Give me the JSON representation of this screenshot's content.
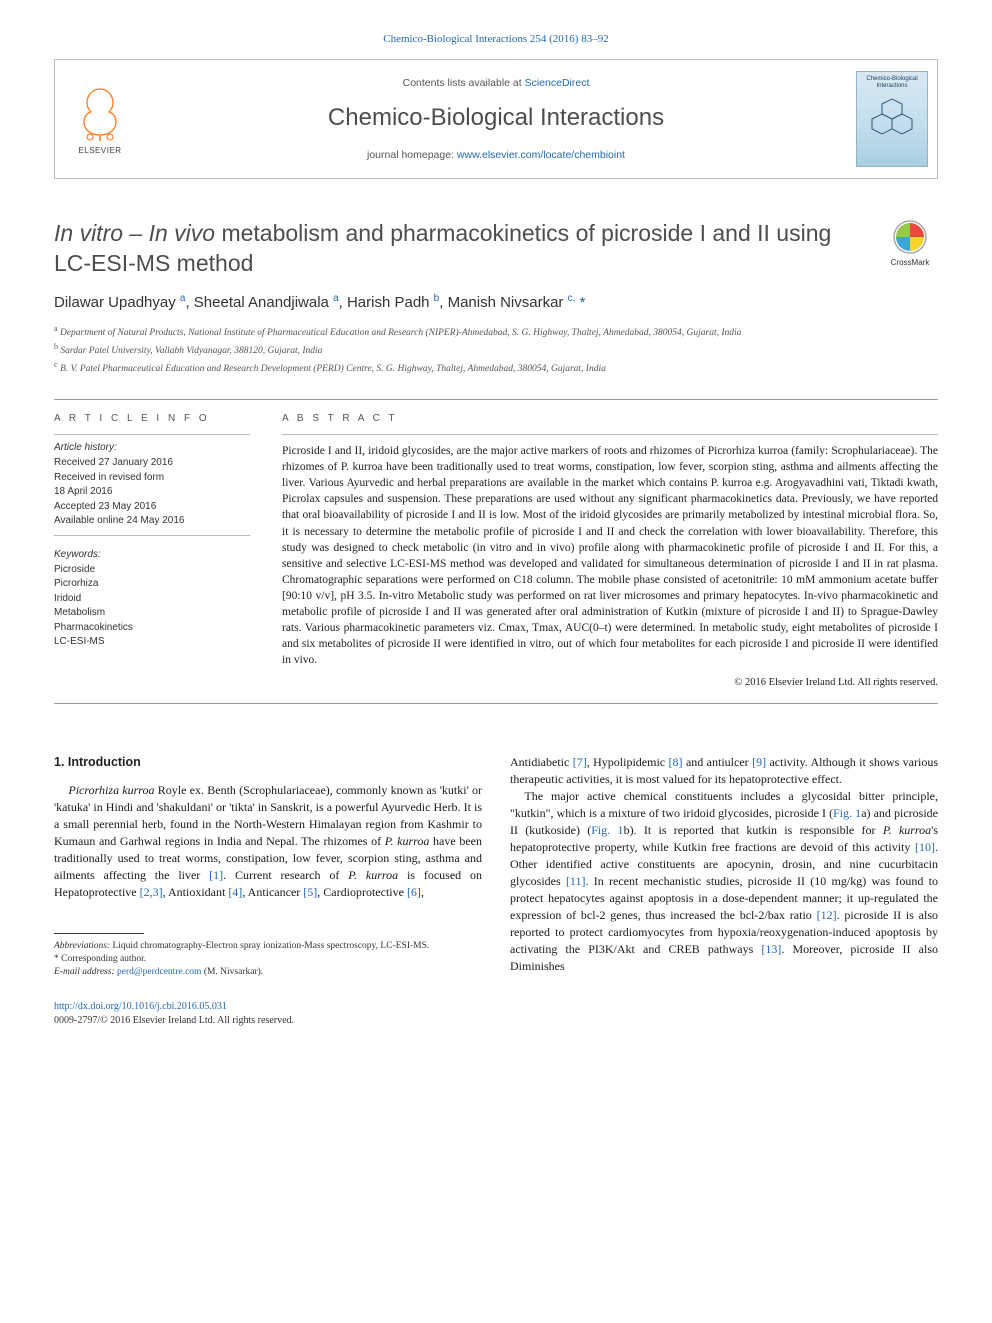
{
  "citation": "Chemico-Biological Interactions 254 (2016) 83–92",
  "header": {
    "contents_prefix": "Contents lists available at ",
    "contents_link": "ScienceDirect",
    "journal": "Chemico-Biological Interactions",
    "homepage_prefix": "journal homepage: ",
    "homepage_link": "www.elsevier.com/locate/chembioint",
    "publisher_label": "ELSEVIER",
    "publisher_color": "#ff7a1a",
    "cover_title": "Chemico-Biological Interactions",
    "cover_bg_top": "#d8e9f3",
    "cover_bg_bottom": "#a9cfe3"
  },
  "crossmark_label": "CrossMark",
  "title_html": "<i>In vitro – In vivo</i> metabolism and pharmacokinetics of picroside I and II using LC-ESI-MS method",
  "authors_html": "Dilawar Upadhyay <sup>a</sup>, Sheetal Anandjiwala <sup>a</sup>, Harish Padh <sup>b</sup>, Manish Nivsarkar <sup>c,</sup> <span class='corr'>*</span>",
  "affiliations": [
    "a Department of Natural Products, National Institute of Pharmaceutical Education and Research (NIPER)-Ahmedabad, S. G. Highway, Thaltej, Ahmedabad, 380054, Gujarat, India",
    "b Sardar Patel University, Vallabh Vidyanagar, 388120, Gujarat, India",
    "c B. V. Patel Pharmaceutical Education and Research Development (PERD) Centre, S. G. Highway, Thaltej, Ahmedabad, 380054, Gujarat, India"
  ],
  "article_info": {
    "heading": "A R T I C L E   I N F O",
    "history_label": "Article history:",
    "history": [
      "Received 27 January 2016",
      "Received in revised form",
      "18 April 2016",
      "Accepted 23 May 2016",
      "Available online 24 May 2016"
    ],
    "keywords_label": "Keywords:",
    "keywords": [
      "Picroside",
      "Picrorhiza",
      "Iridoid",
      "Metabolism",
      "Pharmacokinetics",
      "LC-ESI-MS"
    ]
  },
  "abstract": {
    "heading": "A B S T R A C T",
    "text": "Picroside I and II, iridoid glycosides, are the major active markers of roots and rhizomes of Picrorhiza kurroa (family: Scrophulariaceae). The rhizomes of P. kurroa have been traditionally used to treat worms, constipation, low fever, scorpion sting, asthma and ailments affecting the liver. Various Ayurvedic and herbal preparations are available in the market which contains P. kurroa e.g. Arogyavadhini vati, Tiktadi kwath, Picrolax capsules and suspension. These preparations are used without any significant pharmacokinetics data. Previously, we have reported that oral bioavailability of picroside I and II is low. Most of the iridoid glycosides are primarily metabolized by intestinal microbial flora. So, it is necessary to determine the metabolic profile of picroside I and II and check the correlation with lower bioavailability. Therefore, this study was designed to check metabolic (in vitro and in vivo) profile along with pharmacokinetic profile of picroside I and II. For this, a sensitive and selective LC-ESI-MS method was developed and validated for simultaneous determination of picroside I and II in rat plasma. Chromatographic separations were performed on C18 column. The mobile phase consisted of acetonitrile: 10 mM ammonium acetate buffer [90:10 v/v], pH 3.5. In-vitro Metabolic study was performed on rat liver microsomes and primary hepatocytes. In-vivo pharmacokinetic and metabolic profile of picroside I and II was generated after oral administration of Kutkin (mixture of picroside I and II) to Sprague-Dawley rats. Various pharmacokinetic parameters viz. Cmax, Tmax, AUC(0–t) were determined. In metabolic study, eight metabolites of picroside I and six metabolites of picroside II were identified in vitro, out of which four metabolites for each picroside I and picroside II were identified in vivo.",
    "copyright": "© 2016 Elsevier Ireland Ltd. All rights reserved."
  },
  "intro_heading": "1. Introduction",
  "intro_col1_html": "<i>Picrorhiza kurroa</i> Royle ex. Benth (Scrophulariaceae), commonly known as 'kutki' or 'katuka' in Hindi and 'shakuldani' or 'tikta' in Sanskrit, is a powerful Ayurvedic Herb. It is a small perennial herb, found in the North-Western Himalayan region from Kashmir to Kumaun and Garhwal regions in India and Nepal. The rhizomes of <i>P. kurroa</i> have been traditionally used to treat worms, constipation, low fever, scorpion sting, asthma and ailments affecting the liver <a class='ref'>[1]</a>. Current research of <i>P. kurroa</i> is focused on Hepatoprotective <a class='ref'>[2,3]</a>, Antioxidant <a class='ref'>[4]</a>, Anticancer <a class='ref'>[5]</a>, Cardioprotective <a class='ref'>[6]</a>,",
  "intro_col2_html": "Antidiabetic <a class='ref'>[7]</a>, Hypolipidemic <a class='ref'>[8]</a> and antiulcer <a class='ref'>[9]</a> activity. Although it shows various therapeutic activities, it is most valued for its hepatoprotective effect.",
  "intro_col2b_html": "The major active chemical constituents includes a glycosidal bitter principle, \"kutkin\", which is a mixture of two iridoid glycosides, picroside I (<a class='ref'>Fig. 1</a>a) and picroside II (kutkoside) (<a class='ref'>Fig. 1</a>b). It is reported that kutkin is responsible for <i>P. kurroa</i>'s hepatoprotective property, while Kutkin free fractions are devoid of this activity <a class='ref'>[10]</a>. Other identified active constituents are apocynin, drosin, and nine cucurbitacin glycosides <a class='ref'>[11]</a>. In recent mechanistic studies, picroside II (10 mg/kg) was found to protect hepatocytes against apoptosis in a dose-dependent manner; it up-regulated the expression of bcl-2 genes, thus increased the bcl-2/bax ratio <a class='ref'>[12]</a>. picroside II is also reported to protect cardiomyocytes from hypoxia/reoxygenation-induced apoptosis by activating the PI3K/Akt and CREB pathways <a class='ref'>[13]</a>. Moreover, picroside II also Diminishes",
  "footnotes": {
    "abbrev_label": "Abbreviations:",
    "abbrev_text": " Liquid chromatography-Electron spray ionization-Mass spectroscopy, LC-ESI-MS.",
    "corr_label": "* Corresponding author.",
    "email_label": "E-mail address: ",
    "email": "perd@perdcentre.com",
    "email_person": " (M. Nivsarkar)."
  },
  "bottom": {
    "doi_url": "http://dx.doi.org/10.1016/j.cbi.2016.05.031",
    "issn_line": "0009-2797/© 2016 Elsevier Ireland Ltd. All rights reserved."
  },
  "colors": {
    "link": "#2469b3",
    "heading_gray": "#4d4d4d",
    "rule": "#999999",
    "elsevier_orange": "#ff7a1a"
  }
}
